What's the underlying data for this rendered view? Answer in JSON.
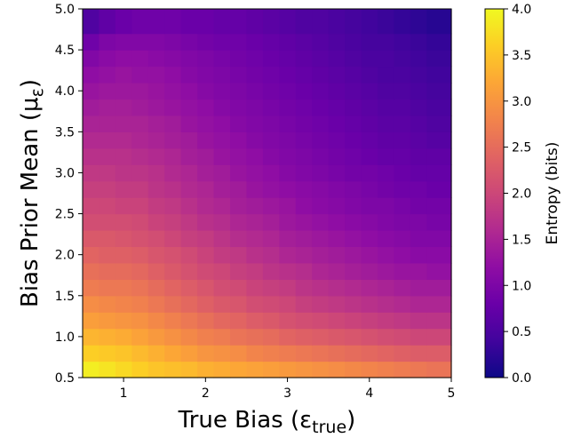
{
  "chart_data": {
    "type": "heatmap",
    "colormap": "plasma",
    "xlabel": "True Bias (ε",
    "xlabel_sub": "true",
    "xlabel_close": ")",
    "ylabel": "Bias Prior Mean (μ",
    "ylabel_sub": "ε",
    "ylabel_close": ")",
    "colorbar_label": "Entropy (bits)",
    "xlim": [
      0.5,
      5.0
    ],
    "ylim": [
      0.5,
      5.0
    ],
    "clim": [
      0.0,
      4.0
    ],
    "x_ticks": [
      "1",
      "2",
      "3",
      "4",
      "5"
    ],
    "y_ticks": [
      "0.5",
      "1.0",
      "1.5",
      "2.0",
      "2.5",
      "3.0",
      "3.5",
      "4.0",
      "4.5",
      "5.0"
    ],
    "colorbar_ticks": [
      "0.0",
      "0.5",
      "1.0",
      "1.5",
      "2.0",
      "2.5",
      "3.0",
      "3.5",
      "4.0"
    ],
    "x_grid": [
      0.6,
      0.8,
      1.0,
      1.2,
      1.4,
      1.6,
      1.8,
      2.0,
      2.2,
      2.4,
      2.6,
      2.8,
      3.0,
      3.2,
      3.4,
      3.6,
      3.8,
      4.0,
      4.2,
      4.4,
      4.6,
      4.8
    ],
    "y_grid": [
      0.6,
      0.8,
      1.0,
      1.2,
      1.4,
      1.6,
      1.8,
      2.0,
      2.2,
      2.4,
      2.6,
      2.8,
      3.0,
      3.2,
      3.4,
      3.6,
      3.8,
      4.0,
      4.2,
      4.4,
      4.6,
      4.8
    ],
    "values": [
      [
        3.9,
        3.8,
        3.7,
        3.6,
        3.5,
        3.45,
        3.4,
        3.3,
        3.25,
        3.2,
        3.15,
        3.1,
        3.05,
        3.0,
        2.95,
        2.9,
        2.85,
        2.8,
        2.75,
        2.7,
        2.65,
        2.6
      ],
      [
        3.6,
        3.55,
        3.5,
        3.4,
        3.3,
        3.2,
        3.1,
        3.0,
        2.95,
        2.9,
        2.8,
        2.75,
        2.7,
        2.65,
        2.6,
        2.55,
        2.5,
        2.45,
        2.4,
        2.35,
        2.3,
        2.3
      ],
      [
        3.35,
        3.3,
        3.25,
        3.15,
        3.05,
        2.95,
        2.85,
        2.75,
        2.7,
        2.6,
        2.55,
        2.5,
        2.4,
        2.35,
        2.3,
        2.25,
        2.2,
        2.15,
        2.1,
        2.05,
        2.0,
        2.0
      ],
      [
        3.1,
        3.05,
        3.0,
        2.95,
        2.85,
        2.75,
        2.65,
        2.55,
        2.45,
        2.4,
        2.3,
        2.25,
        2.15,
        2.1,
        2.05,
        2.0,
        1.95,
        1.9,
        1.85,
        1.8,
        1.75,
        1.75
      ],
      [
        2.9,
        2.85,
        2.8,
        2.75,
        2.65,
        2.55,
        2.45,
        2.35,
        2.25,
        2.2,
        2.1,
        2.05,
        2.0,
        1.9,
        1.85,
        1.8,
        1.75,
        1.7,
        1.65,
        1.6,
        1.55,
        1.55
      ],
      [
        2.7,
        2.65,
        2.65,
        2.6,
        2.5,
        2.4,
        2.3,
        2.2,
        2.1,
        2.05,
        1.95,
        1.9,
        1.85,
        1.75,
        1.7,
        1.65,
        1.6,
        1.55,
        1.5,
        1.45,
        1.4,
        1.4
      ],
      [
        2.55,
        2.5,
        2.5,
        2.45,
        2.35,
        2.25,
        2.15,
        2.05,
        2.0,
        1.9,
        1.85,
        1.75,
        1.7,
        1.65,
        1.55,
        1.5,
        1.45,
        1.4,
        1.35,
        1.3,
        1.3,
        1.25
      ],
      [
        2.4,
        2.35,
        2.35,
        2.3,
        2.2,
        2.15,
        2.05,
        1.95,
        1.85,
        1.8,
        1.7,
        1.65,
        1.55,
        1.5,
        1.45,
        1.4,
        1.35,
        1.3,
        1.25,
        1.2,
        1.15,
        1.15
      ],
      [
        2.25,
        2.25,
        2.2,
        2.15,
        2.1,
        2.0,
        1.9,
        1.85,
        1.75,
        1.65,
        1.6,
        1.55,
        1.45,
        1.4,
        1.35,
        1.3,
        1.25,
        1.2,
        1.15,
        1.1,
        1.05,
        1.05
      ],
      [
        2.1,
        2.1,
        2.1,
        2.05,
        1.95,
        1.9,
        1.8,
        1.7,
        1.65,
        1.55,
        1.5,
        1.45,
        1.35,
        1.3,
        1.25,
        1.2,
        1.15,
        1.1,
        1.05,
        1.0,
        1.0,
        0.95
      ],
      [
        2.0,
        2.0,
        1.95,
        1.95,
        1.85,
        1.8,
        1.7,
        1.6,
        1.55,
        1.45,
        1.4,
        1.35,
        1.3,
        1.2,
        1.15,
        1.1,
        1.05,
        1.0,
        1.0,
        0.95,
        0.9,
        0.9
      ],
      [
        1.9,
        1.9,
        1.85,
        1.85,
        1.75,
        1.7,
        1.6,
        1.55,
        1.45,
        1.4,
        1.3,
        1.25,
        1.2,
        1.15,
        1.1,
        1.05,
        1.0,
        0.95,
        0.9,
        0.85,
        0.85,
        0.8
      ],
      [
        1.8,
        1.8,
        1.75,
        1.75,
        1.7,
        1.6,
        1.55,
        1.45,
        1.4,
        1.3,
        1.25,
        1.2,
        1.1,
        1.05,
        1.0,
        0.95,
        0.9,
        0.9,
        0.85,
        0.8,
        0.75,
        0.75
      ],
      [
        1.7,
        1.7,
        1.7,
        1.65,
        1.6,
        1.55,
        1.45,
        1.4,
        1.3,
        1.25,
        1.2,
        1.1,
        1.05,
        1.0,
        0.95,
        0.9,
        0.85,
        0.8,
        0.75,
        0.75,
        0.7,
        0.7
      ],
      [
        1.6,
        1.6,
        1.6,
        1.55,
        1.5,
        1.45,
        1.4,
        1.3,
        1.25,
        1.2,
        1.1,
        1.05,
        1.0,
        0.95,
        0.9,
        0.85,
        0.8,
        0.75,
        0.7,
        0.7,
        0.65,
        0.6
      ],
      [
        1.5,
        1.5,
        1.5,
        1.5,
        1.45,
        1.4,
        1.3,
        1.25,
        1.2,
        1.1,
        1.05,
        1.0,
        0.95,
        0.9,
        0.85,
        0.8,
        0.75,
        0.7,
        0.65,
        0.65,
        0.6,
        0.55
      ],
      [
        1.4,
        1.45,
        1.45,
        1.4,
        1.35,
        1.3,
        1.25,
        1.2,
        1.1,
        1.05,
        1.0,
        0.95,
        0.9,
        0.85,
        0.8,
        0.75,
        0.7,
        0.65,
        0.6,
        0.6,
        0.55,
        0.5
      ],
      [
        1.3,
        1.35,
        1.35,
        1.35,
        1.3,
        1.25,
        1.2,
        1.1,
        1.05,
        1.0,
        0.95,
        0.9,
        0.85,
        0.8,
        0.75,
        0.7,
        0.65,
        0.6,
        0.55,
        0.55,
        0.5,
        0.45
      ],
      [
        1.2,
        1.25,
        1.3,
        1.25,
        1.25,
        1.2,
        1.1,
        1.05,
        1.0,
        0.95,
        0.9,
        0.85,
        0.8,
        0.75,
        0.7,
        0.65,
        0.6,
        0.55,
        0.5,
        0.5,
        0.45,
        0.4
      ],
      [
        1.05,
        1.15,
        1.2,
        1.2,
        1.15,
        1.1,
        1.05,
        1.0,
        0.95,
        0.9,
        0.85,
        0.8,
        0.75,
        0.7,
        0.65,
        0.6,
        0.55,
        0.5,
        0.5,
        0.45,
        0.4,
        0.35
      ],
      [
        0.85,
        1.0,
        1.05,
        1.05,
        1.05,
        1.0,
        0.95,
        0.9,
        0.85,
        0.85,
        0.8,
        0.75,
        0.7,
        0.65,
        0.6,
        0.55,
        0.5,
        0.45,
        0.45,
        0.4,
        0.35,
        0.3
      ],
      [
        0.55,
        0.7,
        0.8,
        0.85,
        0.85,
        0.85,
        0.8,
        0.8,
        0.75,
        0.75,
        0.7,
        0.65,
        0.6,
        0.55,
        0.55,
        0.5,
        0.45,
        0.4,
        0.35,
        0.3,
        0.25,
        0.2
      ]
    ]
  }
}
